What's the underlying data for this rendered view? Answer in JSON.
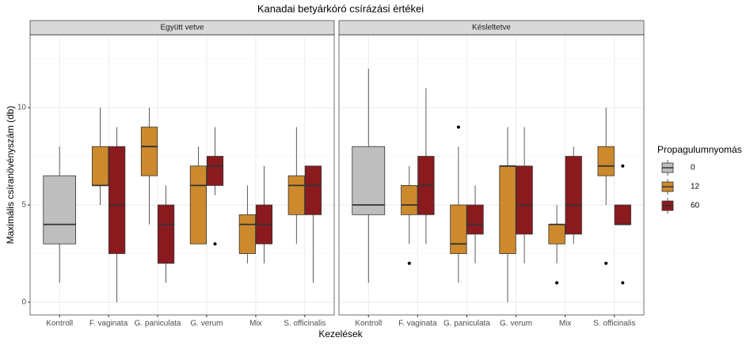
{
  "chart_data": {
    "type": "boxplot",
    "title": "Kanadai betyárkóró csírázási értékei",
    "x_label": "Kezelések",
    "y_label": "Maximális csíranövényszám (db)",
    "legend_title": "Propagulumnyomás",
    "legend_position": "right",
    "categories": [
      "Kontroll",
      "F. vaginata",
      "G. paniculata",
      "G. verum",
      "Mix",
      "S. officinalis"
    ],
    "series": [
      {
        "name": "0",
        "color": "#bebebe"
      },
      {
        "name": "12",
        "color": "#cd8a2c"
      },
      {
        "name": "60",
        "color": "#8b1a1e"
      }
    ],
    "ylim": [
      -0.65,
      13.74
    ],
    "yticks": [
      0,
      5,
      10
    ],
    "minor_yticks": [
      2.5,
      7.5,
      12.5
    ],
    "grid": true,
    "panels": [
      {
        "title": "Együtt vetve",
        "stats": [
          [
            {
              "min": 1,
              "q1": 3,
              "median": 4,
              "q3": 6.5,
              "max": 8,
              "outliers": []
            },
            null,
            null,
            null,
            null,
            null
          ],
          [
            null,
            {
              "min": 5,
              "q1": 6,
              "median": 6,
              "q3": 8,
              "max": 10,
              "outliers": []
            },
            {
              "min": 4,
              "q1": 6.5,
              "median": 8,
              "q3": 9,
              "max": 10,
              "outliers": []
            },
            {
              "min": 3,
              "q1": 3,
              "median": 6,
              "q3": 7,
              "max": 8,
              "outliers": []
            },
            {
              "min": 2,
              "q1": 2.5,
              "median": 4,
              "q3": 4.5,
              "max": 6,
              "outliers": []
            },
            {
              "min": 3,
              "q1": 4.5,
              "median": 6,
              "q3": 6.5,
              "max": 9,
              "outliers": []
            }
          ],
          [
            null,
            {
              "min": 0,
              "q1": 2.5,
              "median": 5,
              "q3": 8,
              "max": 9,
              "outliers": []
            },
            {
              "min": 1,
              "q1": 2,
              "median": 4,
              "q3": 5,
              "max": 6,
              "outliers": []
            },
            {
              "min": 5.5,
              "q1": 6,
              "median": 7,
              "q3": 7.5,
              "max": 9,
              "outliers": [
                3
              ]
            },
            {
              "min": 2,
              "q1": 3,
              "median": 4,
              "q3": 5,
              "max": 7,
              "outliers": []
            },
            {
              "min": 1,
              "q1": 4.5,
              "median": 6,
              "q3": 7,
              "max": 7,
              "outliers": []
            }
          ]
        ]
      },
      {
        "title": "Késleltetve",
        "stats": [
          [
            {
              "min": 1,
              "q1": 4.5,
              "median": 5,
              "q3": 8,
              "max": 12,
              "outliers": []
            },
            null,
            null,
            null,
            null,
            null
          ],
          [
            null,
            {
              "min": 3,
              "q1": 4.5,
              "median": 5,
              "q3": 6,
              "max": 7,
              "outliers": [
                2
              ]
            },
            {
              "min": 1,
              "q1": 2.5,
              "median": 3,
              "q3": 5,
              "max": 8,
              "outliers": [
                9
              ]
            },
            {
              "min": 0,
              "q1": 2.5,
              "median": 7,
              "q3": 7,
              "max": 9,
              "outliers": []
            },
            {
              "min": 2,
              "q1": 3,
              "median": 4,
              "q3": 4,
              "max": 5,
              "outliers": [
                1
              ]
            },
            {
              "min": 5,
              "q1": 6.5,
              "median": 7,
              "q3": 8,
              "max": 10,
              "outliers": [
                2
              ]
            }
          ],
          [
            null,
            {
              "min": 3,
              "q1": 4.5,
              "median": 6,
              "q3": 7.5,
              "max": 11,
              "outliers": []
            },
            {
              "min": 2,
              "q1": 3.5,
              "median": 4,
              "q3": 5,
              "max": 6,
              "outliers": []
            },
            {
              "min": 2,
              "q1": 3.5,
              "median": 5,
              "q3": 7,
              "max": 9,
              "outliers": []
            },
            {
              "min": 3,
              "q1": 3.5,
              "median": 5,
              "q3": 7.5,
              "max": 8,
              "outliers": []
            },
            {
              "min": 4,
              "q1": 4,
              "median": 4,
              "q3": 5,
              "max": 5,
              "outliers": [
                7,
                1
              ]
            }
          ]
        ]
      }
    ]
  }
}
